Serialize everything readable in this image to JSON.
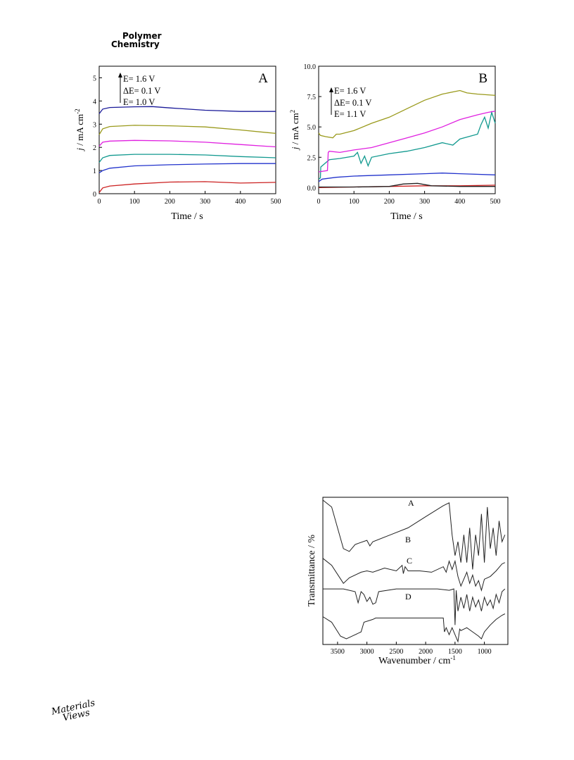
{
  "header": {
    "journal_line1": "Polymer",
    "journal_line2": "Chemistry"
  },
  "footer": {
    "logo_line1": "Materials",
    "logo_line2": "Views"
  },
  "chart_data": [
    {
      "type": "line",
      "panel_label": "A",
      "xlabel": "Time / s",
      "ylabel_html": "j / mA cm-2",
      "ylabel_italic": "j",
      "ylabel_rest": " / mA cm",
      "ylabel_sup": "-2",
      "xlim": [
        0,
        500
      ],
      "ylim": [
        0,
        5.5
      ],
      "xticks": [
        0,
        100,
        200,
        300,
        400,
        500
      ],
      "xtick_labels": [
        "0",
        "100",
        "200",
        "300",
        "400",
        "500"
      ],
      "yticks": [
        0,
        1,
        2,
        3,
        4,
        5
      ],
      "ytick_labels": [
        "0",
        "1",
        "2",
        "3",
        "4",
        "5"
      ],
      "annotation": [
        "E= 1.6 V",
        "ΔE= 0.1 V",
        "E= 1.0 V"
      ],
      "grid": false,
      "series": [
        {
          "color": "#cc2222",
          "x": [
            0,
            10,
            30,
            100,
            200,
            300,
            400,
            500
          ],
          "y": [
            0.05,
            0.25,
            0.33,
            0.42,
            0.5,
            0.52,
            0.46,
            0.49
          ]
        },
        {
          "color": "#2233cc",
          "x": [
            0,
            10,
            30,
            100,
            200,
            300,
            400,
            500
          ],
          "y": [
            0.9,
            1.0,
            1.1,
            1.2,
            1.25,
            1.28,
            1.3,
            1.3
          ]
        },
        {
          "color": "#11998f",
          "x": [
            0,
            10,
            30,
            100,
            200,
            300,
            400,
            500
          ],
          "y": [
            1.35,
            1.55,
            1.65,
            1.7,
            1.7,
            1.67,
            1.6,
            1.55
          ]
        },
        {
          "color": "#e020e0",
          "x": [
            0,
            10,
            30,
            100,
            200,
            300,
            400,
            500
          ],
          "y": [
            2.05,
            2.22,
            2.27,
            2.3,
            2.28,
            2.22,
            2.12,
            2.02
          ]
        },
        {
          "color": "#9a9a1c",
          "x": [
            0,
            10,
            30,
            100,
            200,
            300,
            400,
            500
          ],
          "y": [
            2.55,
            2.8,
            2.9,
            2.95,
            2.93,
            2.88,
            2.75,
            2.6
          ]
        },
        {
          "color": "#1a1a99",
          "x": [
            0,
            10,
            30,
            100,
            150,
            200,
            300,
            400,
            500
          ],
          "y": [
            3.45,
            3.65,
            3.72,
            3.75,
            3.76,
            3.7,
            3.6,
            3.55,
            3.55
          ]
        }
      ]
    },
    {
      "type": "line",
      "panel_label": "B",
      "xlabel": "Time / s",
      "ylabel_italic": "j",
      "ylabel_rest": " / mA cm",
      "ylabel_sup": "2",
      "xlim": [
        0,
        500
      ],
      "ylim": [
        -0.5,
        10.0
      ],
      "xticks": [
        0,
        100,
        200,
        300,
        400,
        500
      ],
      "xtick_labels": [
        "0",
        "100",
        "200",
        "300",
        "400",
        "500"
      ],
      "yticks": [
        0,
        2.5,
        5.0,
        7.5,
        10.0
      ],
      "ytick_labels": [
        "0.0",
        "2.5",
        "5.0",
        "7.5",
        "10.0"
      ],
      "annotation": [
        "E= 1.6 V",
        "ΔE= 0.1 V",
        "E= 1.1 V"
      ],
      "grid": false,
      "series": [
        {
          "color": "#cc2222",
          "x": [
            0,
            100,
            200,
            300,
            400,
            500
          ],
          "y": [
            0.0,
            0.05,
            0.1,
            0.15,
            0.15,
            0.2
          ]
        },
        {
          "color": "#222222",
          "x": [
            0,
            100,
            200,
            240,
            280,
            320,
            400,
            500
          ],
          "y": [
            0.05,
            0.05,
            0.1,
            0.3,
            0.35,
            0.15,
            0.1,
            0.1
          ]
        },
        {
          "color": "#2233cc",
          "x": [
            0,
            10,
            50,
            100,
            200,
            300,
            350,
            400,
            500
          ],
          "y": [
            0.5,
            0.7,
            0.85,
            0.95,
            1.05,
            1.15,
            1.2,
            1.15,
            1.05
          ]
        },
        {
          "color": "#11998f",
          "x": [
            0,
            5,
            6,
            30,
            60,
            100,
            110,
            120,
            130,
            140,
            150,
            200,
            250,
            300,
            350,
            380,
            400,
            450,
            460,
            470,
            480,
            490,
            500
          ],
          "y": [
            0.7,
            0.8,
            1.7,
            2.3,
            2.4,
            2.6,
            2.9,
            2.0,
            2.6,
            1.8,
            2.5,
            2.8,
            3.0,
            3.3,
            3.7,
            3.5,
            4.0,
            4.4,
            5.2,
            5.8,
            4.9,
            6.2,
            5.3
          ]
        },
        {
          "color": "#e020e0",
          "x": [
            0,
            25,
            27,
            30,
            60,
            100,
            150,
            200,
            250,
            300,
            350,
            400,
            450,
            480,
            500
          ],
          "y": [
            1.3,
            1.4,
            2.9,
            3.0,
            2.9,
            3.1,
            3.3,
            3.7,
            4.1,
            4.5,
            5.0,
            5.6,
            6.0,
            6.2,
            6.3
          ]
        },
        {
          "color": "#9a9a1c",
          "x": [
            0,
            5,
            20,
            40,
            50,
            60,
            100,
            150,
            200,
            250,
            300,
            350,
            400,
            420,
            450,
            500
          ],
          "y": [
            4.5,
            4.3,
            4.2,
            4.1,
            4.4,
            4.4,
            4.7,
            5.3,
            5.8,
            6.5,
            7.2,
            7.7,
            8.0,
            7.8,
            7.7,
            7.6
          ]
        }
      ]
    },
    {
      "type": "line",
      "xlabel": "Wavenumber / cm",
      "xlabel_sup": "-1",
      "ylabel": "Transmittance / %",
      "xlim": [
        3750,
        600
      ],
      "x_reversed": true,
      "xticks": [
        3500,
        3000,
        2500,
        2000,
        1500,
        1000
      ],
      "xtick_labels": [
        "3500",
        "3000",
        "2500",
        "2000",
        "1500",
        "1000"
      ],
      "grid": false,
      "series": [
        {
          "name": "A",
          "color": "#222222",
          "x": [
            3750,
            3600,
            3400,
            3300,
            3200,
            3000,
            2950,
            2900,
            2600,
            2300,
            2000,
            1700,
            1600,
            1550,
            1500,
            1450,
            1400,
            1350,
            1300,
            1250,
            1200,
            1150,
            1100,
            1050,
            1000,
            950,
            900,
            850,
            800,
            750,
            700,
            650
          ],
          "y": [
            0.0,
            0.05,
            0.35,
            0.37,
            0.32,
            0.29,
            0.33,
            0.3,
            0.25,
            0.2,
            0.12,
            0.04,
            0.02,
            0.25,
            0.4,
            0.3,
            0.45,
            0.25,
            0.45,
            0.2,
            0.5,
            0.25,
            0.4,
            0.1,
            0.45,
            0.05,
            0.35,
            0.2,
            0.4,
            0.15,
            0.3,
            0.25
          ]
        },
        {
          "name": "B",
          "color": "#222222",
          "x": [
            3750,
            3600,
            3400,
            3300,
            3100,
            3000,
            2900,
            2700,
            2500,
            2400,
            2380,
            2350,
            2300,
            2100,
            1900,
            1700,
            1650,
            1600,
            1550,
            1500,
            1450,
            1400,
            1300,
            1250,
            1200,
            1150,
            1100,
            1050,
            1000,
            900,
            800,
            700,
            650
          ],
          "y": [
            0.42,
            0.47,
            0.6,
            0.56,
            0.52,
            0.51,
            0.52,
            0.49,
            0.51,
            0.47,
            0.53,
            0.48,
            0.51,
            0.51,
            0.52,
            0.48,
            0.52,
            0.44,
            0.5,
            0.44,
            0.55,
            0.62,
            0.52,
            0.6,
            0.54,
            0.62,
            0.58,
            0.65,
            0.57,
            0.55,
            0.51,
            0.46,
            0.45
          ]
        },
        {
          "name": "C",
          "color": "#222222",
          "x": [
            3750,
            3400,
            3200,
            3150,
            3100,
            3050,
            3000,
            2950,
            2900,
            2850,
            2800,
            2500,
            2000,
            1800,
            1600,
            1520,
            1500,
            1480,
            1450,
            1400,
            1350,
            1300,
            1250,
            1200,
            1150,
            1100,
            1050,
            1000,
            950,
            900,
            850,
            800,
            750,
            700,
            650
          ],
          "y": [
            0.64,
            0.64,
            0.66,
            0.74,
            0.66,
            0.68,
            0.73,
            0.7,
            0.75,
            0.74,
            0.66,
            0.64,
            0.64,
            0.64,
            0.65,
            0.64,
            0.9,
            0.65,
            0.8,
            0.7,
            0.78,
            0.68,
            0.8,
            0.7,
            0.77,
            0.72,
            0.8,
            0.7,
            0.76,
            0.72,
            0.78,
            0.68,
            0.74,
            0.66,
            0.64
          ]
        },
        {
          "name": "D",
          "color": "#222222",
          "x": [
            3750,
            3600,
            3450,
            3350,
            3250,
            3100,
            3050,
            2900,
            2850,
            2000,
            1700,
            1680,
            1650,
            1600,
            1550,
            1450,
            1420,
            1400,
            1300,
            1200,
            1100,
            1050,
            1000,
            900,
            800,
            700,
            650
          ],
          "y": [
            0.84,
            0.88,
            0.98,
            1.0,
            0.98,
            0.95,
            0.88,
            0.86,
            0.85,
            0.85,
            0.85,
            0.95,
            0.92,
            0.97,
            0.92,
            1.02,
            0.93,
            0.94,
            0.92,
            0.95,
            0.98,
            1.0,
            0.95,
            0.9,
            0.86,
            0.83,
            0.82
          ]
        }
      ]
    }
  ]
}
